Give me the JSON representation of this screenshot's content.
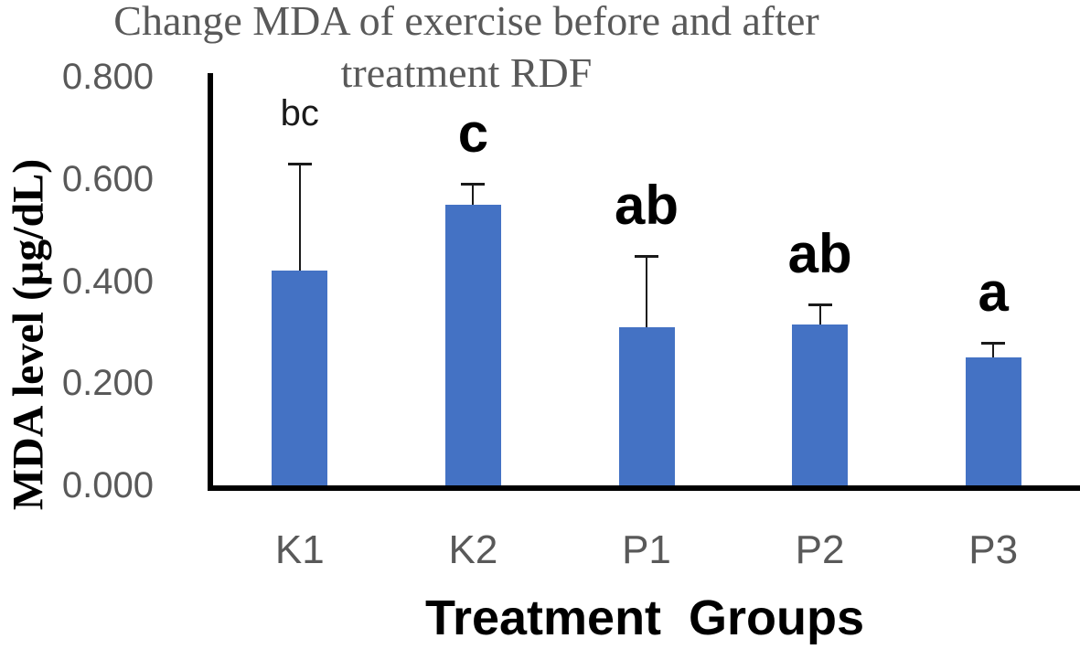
{
  "figure": {
    "title_line1": "Change MDA of exercise before and after",
    "title_line2": "treatment RDF",
    "y_axis_title": "MDA level (μg/dL)",
    "x_axis_title": "Treatment  Groups"
  },
  "colors": {
    "bar": "#4472C4",
    "title_text": "#595959",
    "tick_text": "#595959",
    "axis_line": "#000000",
    "sig_letter_text": "#000000"
  },
  "chart_data": {
    "type": "bar",
    "title": "Change MDA of exercise before and after treatment RDF",
    "xlabel": "Treatment  Groups",
    "ylabel": "MDA level (μg/dL)",
    "categories": [
      "K1",
      "K2",
      "P1",
      "P2",
      "P3"
    ],
    "values": [
      0.42,
      0.55,
      0.31,
      0.315,
      0.25
    ],
    "error_plus": [
      0.21,
      0.04,
      0.14,
      0.04,
      0.03
    ],
    "sig_letters": [
      "bc",
      "c",
      "ab",
      "ab",
      "a"
    ],
    "sig_letter_small": [
      true,
      false,
      false,
      false,
      false
    ],
    "ylim": [
      0,
      0.8
    ],
    "y_ticks": [
      "0.000",
      "0.200",
      "0.400",
      "0.600",
      "0.800"
    ],
    "y_tick_values": [
      0.0,
      0.2,
      0.4,
      0.6,
      0.8
    ],
    "grid": false,
    "legend_position": "none",
    "bar_color": "#4472C4",
    "error_bar_direction": "plus-only"
  }
}
